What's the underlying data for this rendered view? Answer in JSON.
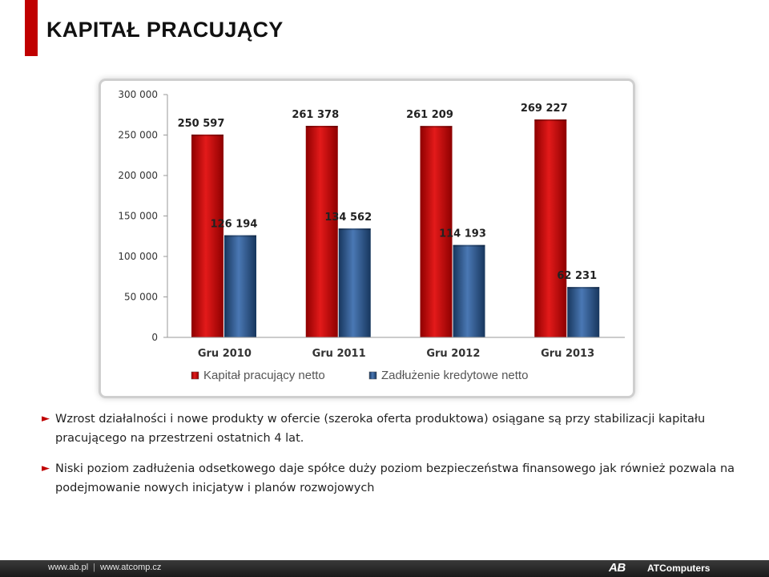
{
  "slide": {
    "title": "KAPITAŁ PRACUJĄCY",
    "accent_color": "#c00000"
  },
  "chart_data": {
    "type": "bar",
    "title": "",
    "xlabel": "",
    "ylabel": "",
    "categories": [
      "Gru 2010",
      "Gru 2011",
      "Gru 2012",
      "Gru 2013"
    ],
    "series": [
      {
        "name": "Kapitał pracujący netto",
        "color": "#c00000",
        "values": [
          250597,
          261378,
          261209,
          269227
        ],
        "labels": [
          "250 597",
          "261 378",
          "261 209",
          "269 227"
        ]
      },
      {
        "name": "Zadłużenie kredytowe netto",
        "color": "#1f497d",
        "values": [
          126194,
          134562,
          114193,
          62231
        ],
        "labels": [
          "126 194",
          "134 562",
          "114 193",
          "62 231"
        ]
      }
    ],
    "ylim": [
      0,
      300000
    ],
    "yticks": [
      0,
      50000,
      100000,
      150000,
      200000,
      250000,
      300000
    ],
    "ytick_labels": [
      "0",
      "50 000",
      "100 000",
      "150 000",
      "200 000",
      "250 000",
      "300 000"
    ],
    "grid": false,
    "legend_position": "bottom"
  },
  "bullets": [
    {
      "marker": "►",
      "text": "Wzrost działalności i nowe produkty w ofercie (szeroka oferta produktowa) osiągane są przy stabilizacji kapitału pracującego na przestrzeni ostatnich 4 lat."
    },
    {
      "marker": "►",
      "text": "Niski poziom zadłużenia odsetkowego daje spółce duży poziom bezpieczeństwa finansowego jak również pozwala na podejmowanie nowych inicjatyw i planów rozwojowych"
    }
  ],
  "footer": {
    "link1": "www.ab.pl",
    "separator": "|",
    "link2": "www.atcomp.cz",
    "logo_ab": "AB",
    "logo_atc": "ATComputers"
  }
}
